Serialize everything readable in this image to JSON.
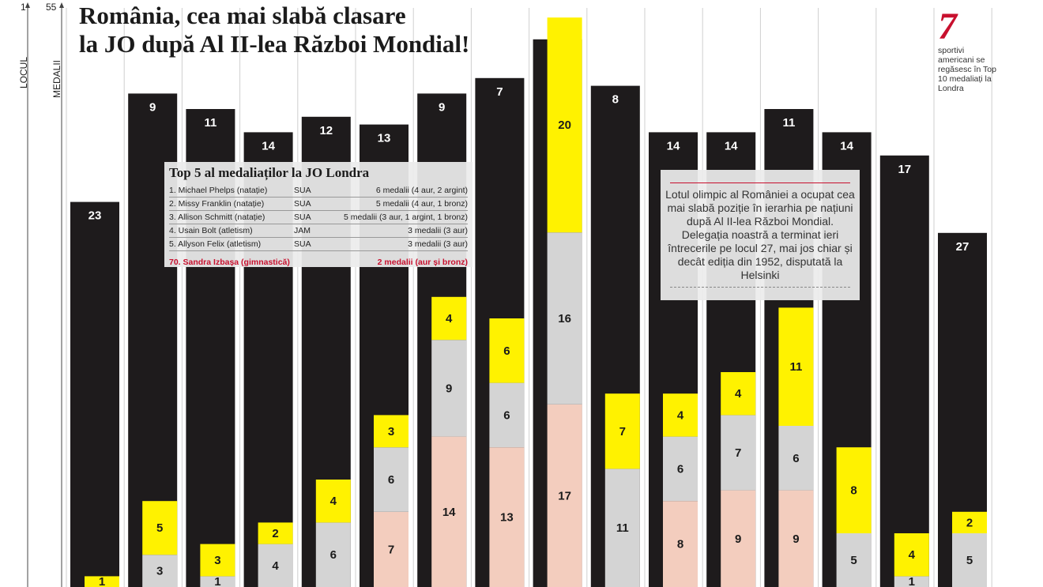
{
  "title": {
    "line1": "România, cea mai slabă clasare",
    "line2": "la JO după Al II-lea Război Mondial!"
  },
  "axes": {
    "locul_label": "LOCUL",
    "medalii_label": "MEDALII",
    "locul_top_tick": "1",
    "medalii_top_tick": "55"
  },
  "colors": {
    "rank_bar": "#1e1b1c",
    "gold": "#fff200",
    "silver": "#d4d4d4",
    "bronze": "#f3cdbe",
    "accent": "#c8102e"
  },
  "chart_data": {
    "type": "bar",
    "description_series": [
      "loc (rank)",
      "aur",
      "argint",
      "bronz"
    ],
    "rank_axis": [
      1,
      28
    ],
    "medal_axis": [
      0,
      55
    ],
    "editions": [
      {
        "rank": 23,
        "gold": 1,
        "silver": null,
        "bronze": null
      },
      {
        "rank": 9,
        "gold": 5,
        "silver": 3,
        "bronze": null
      },
      {
        "rank": 11,
        "gold": 3,
        "silver": 1,
        "bronze": null
      },
      {
        "rank": 14,
        "gold": 2,
        "silver": 4,
        "bronze": null
      },
      {
        "rank": 12,
        "gold": 4,
        "silver": 6,
        "bronze": null
      },
      {
        "rank": 13,
        "gold": 3,
        "silver": 6,
        "bronze": 7
      },
      {
        "rank": 9,
        "gold": 4,
        "silver": 9,
        "bronze": 14
      },
      {
        "rank": 7,
        "gold": 6,
        "silver": 6,
        "bronze": 13
      },
      {
        "rank": 2,
        "gold": 20,
        "silver": 16,
        "bronze": 17
      },
      {
        "rank": 8,
        "gold": 7,
        "silver": 11,
        "bronze": null
      },
      {
        "rank": 14,
        "gold": 4,
        "silver": 6,
        "bronze": 8
      },
      {
        "rank": 14,
        "gold": 4,
        "silver": 7,
        "bronze": 9
      },
      {
        "rank": 11,
        "gold": 11,
        "silver": 6,
        "bronze": 9
      },
      {
        "rank": 14,
        "gold": 8,
        "silver": 5,
        "bronze": null
      },
      {
        "rank": 17,
        "gold": 4,
        "silver": 1,
        "bronze": null
      },
      {
        "rank": 27,
        "gold": 2,
        "silver": 5,
        "bronze": null
      }
    ]
  },
  "top5": {
    "title": "Top 5 al medaliaților la JO Londra",
    "rows": [
      {
        "name": "1. Michael Phelps (natație)",
        "country": "SUA",
        "medals": "6 medalii (4 aur, 2 argint)"
      },
      {
        "name": "2. Missy Franklin (natație)",
        "country": "SUA",
        "medals": "5 medalii (4 aur, 1 bronz)"
      },
      {
        "name": "3. Allison Schmitt (natație)",
        "country": "SUA",
        "medals": "5 medalii (3 aur, 1 argint, 1 bronz)"
      },
      {
        "name": "4. Usain Bolt (atletism)",
        "country": "JAM",
        "medals": "3 medalii (3 aur)"
      },
      {
        "name": "5. Allyson Felix (atletism)",
        "country": "SUA",
        "medals": "3 medalii (3 aur)"
      }
    ],
    "romania": {
      "name": "70. Sandra Izbașa (gimnastică)",
      "medals": "2 medalii (aur și bronz)"
    }
  },
  "romania_note": "Lotul olimpic al României a ocupat cea mai slabă poziție în ierarhia pe națiuni după Al II-lea Război Mondial. Delegația noastră a terminat ieri întrecerile pe locul 27, mai jos chiar și decât ediția din 1952, disputată la Helsinki",
  "side_fact": {
    "number": "7",
    "text": "sportivi americani se regăsesc în Top 10 medaliați la Londra"
  }
}
